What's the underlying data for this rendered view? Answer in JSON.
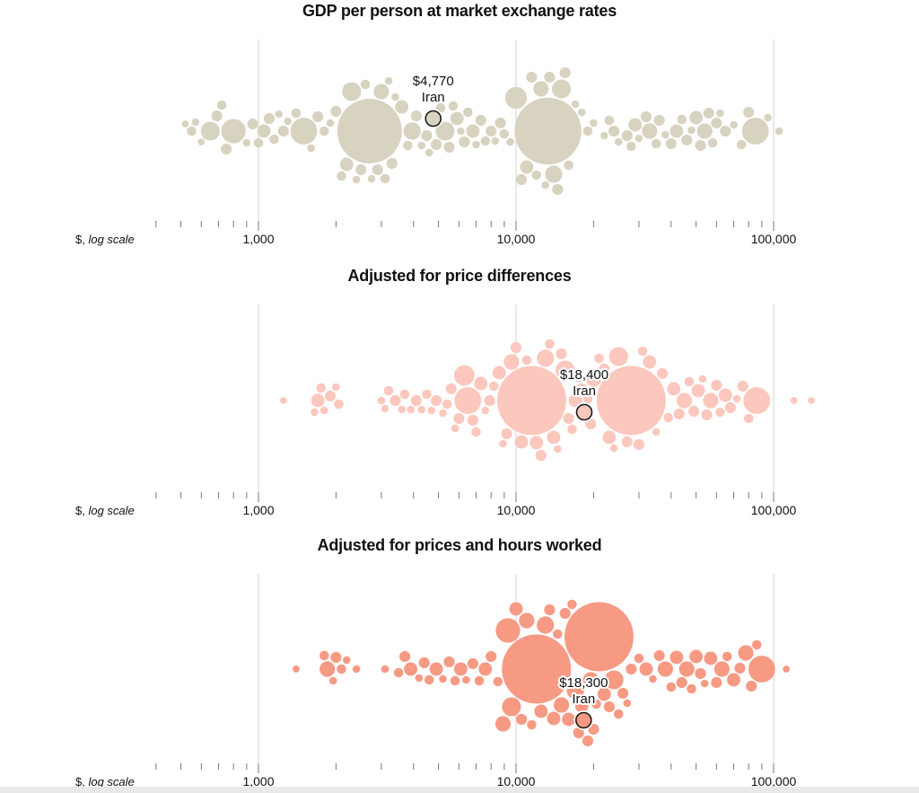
{
  "colors": {
    "panel_0": "#d8d3c0",
    "panel_1": "#fcc7bd",
    "panel_2": "#f79a84",
    "highlight_stroke": "#1a1a1a",
    "gridline": "#d6d6d6",
    "tick": "#777777"
  },
  "axis": {
    "scale": "log",
    "min": 400,
    "max": 110000,
    "major_ticks": [
      1000,
      10000,
      100000
    ],
    "tick_labels": [
      "1,000",
      "10,000",
      "100,000"
    ],
    "unit_label_prefix": "$, ",
    "unit_label_italic": "log scale"
  },
  "chart_data": [
    {
      "type": "scatter",
      "subtype": "beeswarm",
      "title": "GDP per person at market exchange rates",
      "highlight": {
        "country": "Iran",
        "value": 4770,
        "value_label": "$4,770"
      },
      "points": [
        {
          "x": 520,
          "s": 0.8
        },
        {
          "x": 550,
          "s": 1.5
        },
        {
          "x": 570,
          "s": 1
        },
        {
          "x": 600,
          "s": 0.8
        },
        {
          "x": 650,
          "s": 6
        },
        {
          "x": 690,
          "s": 2
        },
        {
          "x": 720,
          "s": 1.5
        },
        {
          "x": 750,
          "s": 2
        },
        {
          "x": 800,
          "s": 10
        },
        {
          "x": 900,
          "s": 1
        },
        {
          "x": 950,
          "s": 2
        },
        {
          "x": 1000,
          "s": 1.5
        },
        {
          "x": 1050,
          "s": 3
        },
        {
          "x": 1100,
          "s": 2
        },
        {
          "x": 1150,
          "s": 1.5
        },
        {
          "x": 1200,
          "s": 1
        },
        {
          "x": 1250,
          "s": 2
        },
        {
          "x": 1300,
          "s": 1
        },
        {
          "x": 1400,
          "s": 1.5
        },
        {
          "x": 1500,
          "s": 12
        },
        {
          "x": 1600,
          "s": 1
        },
        {
          "x": 1700,
          "s": 2
        },
        {
          "x": 1800,
          "s": 1.5
        },
        {
          "x": 1900,
          "s": 1
        },
        {
          "x": 2000,
          "s": 2
        },
        {
          "x": 2100,
          "s": 1.5
        },
        {
          "x": 2200,
          "s": 3
        },
        {
          "x": 2300,
          "s": 6
        },
        {
          "x": 2400,
          "s": 1
        },
        {
          "x": 2500,
          "s": 2
        },
        {
          "x": 2600,
          "s": 1.5
        },
        {
          "x": 2700,
          "s": 70
        },
        {
          "x": 2750,
          "s": 1
        },
        {
          "x": 2900,
          "s": 2
        },
        {
          "x": 3000,
          "s": 4
        },
        {
          "x": 3100,
          "s": 1.5
        },
        {
          "x": 3200,
          "s": 1
        },
        {
          "x": 3300,
          "s": 2
        },
        {
          "x": 3400,
          "s": 1
        },
        {
          "x": 3600,
          "s": 3
        },
        {
          "x": 3800,
          "s": 1.5
        },
        {
          "x": 3950,
          "s": 5
        },
        {
          "x": 4100,
          "s": 2
        },
        {
          "x": 4300,
          "s": 1
        },
        {
          "x": 4500,
          "s": 2
        },
        {
          "x": 4600,
          "s": 1
        },
        {
          "x": 4770,
          "s": 3
        },
        {
          "x": 4900,
          "s": 2
        },
        {
          "x": 5100,
          "s": 1.5
        },
        {
          "x": 5300,
          "s": 6
        },
        {
          "x": 5500,
          "s": 2
        },
        {
          "x": 5700,
          "s": 1.5
        },
        {
          "x": 5900,
          "s": 3
        },
        {
          "x": 6100,
          "s": 1
        },
        {
          "x": 6300,
          "s": 2
        },
        {
          "x": 6500,
          "s": 1.5
        },
        {
          "x": 6800,
          "s": 3
        },
        {
          "x": 7000,
          "s": 1
        },
        {
          "x": 7300,
          "s": 2
        },
        {
          "x": 7600,
          "s": 1.5
        },
        {
          "x": 8000,
          "s": 2
        },
        {
          "x": 8300,
          "s": 1
        },
        {
          "x": 8700,
          "s": 2
        },
        {
          "x": 9000,
          "s": 1.5
        },
        {
          "x": 9500,
          "s": 1
        },
        {
          "x": 10000,
          "s": 8
        },
        {
          "x": 10500,
          "s": 2
        },
        {
          "x": 11000,
          "s": 3
        },
        {
          "x": 11500,
          "s": 2
        },
        {
          "x": 12000,
          "s": 1.5
        },
        {
          "x": 12500,
          "s": 4
        },
        {
          "x": 13000,
          "s": 1
        },
        {
          "x": 13300,
          "s": 75
        },
        {
          "x": 13500,
          "s": 2
        },
        {
          "x": 14000,
          "s": 5
        },
        {
          "x": 14500,
          "s": 2
        },
        {
          "x": 15000,
          "s": 6
        },
        {
          "x": 15500,
          "s": 2
        },
        {
          "x": 16000,
          "s": 1.5
        },
        {
          "x": 17000,
          "s": 1
        },
        {
          "x": 18000,
          "s": 1
        },
        {
          "x": 19000,
          "s": 1.5
        },
        {
          "x": 20000,
          "s": 1
        },
        {
          "x": 22000,
          "s": 1
        },
        {
          "x": 23000,
          "s": 1.5
        },
        {
          "x": 24000,
          "s": 2
        },
        {
          "x": 25000,
          "s": 1
        },
        {
          "x": 27000,
          "s": 2
        },
        {
          "x": 28000,
          "s": 1.5
        },
        {
          "x": 29000,
          "s": 3
        },
        {
          "x": 30000,
          "s": 1
        },
        {
          "x": 32000,
          "s": 2
        },
        {
          "x": 33000,
          "s": 4
        },
        {
          "x": 35000,
          "s": 1.5
        },
        {
          "x": 36000,
          "s": 2
        },
        {
          "x": 38000,
          "s": 1
        },
        {
          "x": 40000,
          "s": 2
        },
        {
          "x": 42000,
          "s": 3
        },
        {
          "x": 44000,
          "s": 1.5
        },
        {
          "x": 46000,
          "s": 2
        },
        {
          "x": 48000,
          "s": 1
        },
        {
          "x": 50000,
          "s": 3
        },
        {
          "x": 52000,
          "s": 2
        },
        {
          "x": 54000,
          "s": 4
        },
        {
          "x": 56000,
          "s": 2
        },
        {
          "x": 58000,
          "s": 1.5
        },
        {
          "x": 60000,
          "s": 2
        },
        {
          "x": 62000,
          "s": 1
        },
        {
          "x": 65000,
          "s": 2
        },
        {
          "x": 70000,
          "s": 1
        },
        {
          "x": 75000,
          "s": 1.5
        },
        {
          "x": 80000,
          "s": 2
        },
        {
          "x": 85000,
          "s": 12
        },
        {
          "x": 95000,
          "s": 1
        },
        {
          "x": 105000,
          "s": 1
        }
      ]
    },
    {
      "type": "scatter",
      "subtype": "beeswarm",
      "title": "Adjusted for price differences",
      "highlight": {
        "country": "Iran",
        "value": 18400,
        "value_label": "$18,400"
      },
      "points": [
        {
          "x": 1250,
          "s": 0.8
        },
        {
          "x": 1650,
          "s": 1
        },
        {
          "x": 1700,
          "s": 3
        },
        {
          "x": 1750,
          "s": 1.5
        },
        {
          "x": 1800,
          "s": 1
        },
        {
          "x": 1900,
          "s": 2
        },
        {
          "x": 2000,
          "s": 1
        },
        {
          "x": 2050,
          "s": 1.5
        },
        {
          "x": 3000,
          "s": 1
        },
        {
          "x": 3100,
          "s": 1
        },
        {
          "x": 3200,
          "s": 1.5
        },
        {
          "x": 3400,
          "s": 2
        },
        {
          "x": 3600,
          "s": 1
        },
        {
          "x": 3700,
          "s": 1.5
        },
        {
          "x": 3900,
          "s": 1
        },
        {
          "x": 4100,
          "s": 2
        },
        {
          "x": 4300,
          "s": 1
        },
        {
          "x": 4500,
          "s": 1.5
        },
        {
          "x": 4700,
          "s": 1
        },
        {
          "x": 4900,
          "s": 2
        },
        {
          "x": 5200,
          "s": 1
        },
        {
          "x": 5400,
          "s": 1.5
        },
        {
          "x": 5600,
          "s": 2
        },
        {
          "x": 5800,
          "s": 1
        },
        {
          "x": 6000,
          "s": 2
        },
        {
          "x": 6300,
          "s": 7
        },
        {
          "x": 6500,
          "s": 12
        },
        {
          "x": 6800,
          "s": 2
        },
        {
          "x": 7000,
          "s": 1.5
        },
        {
          "x": 7300,
          "s": 3
        },
        {
          "x": 7600,
          "s": 1
        },
        {
          "x": 7900,
          "s": 2
        },
        {
          "x": 8200,
          "s": 1.5
        },
        {
          "x": 8600,
          "s": 3
        },
        {
          "x": 8900,
          "s": 1
        },
        {
          "x": 9200,
          "s": 2
        },
        {
          "x": 9600,
          "s": 4
        },
        {
          "x": 10000,
          "s": 2
        },
        {
          "x": 10500,
          "s": 3
        },
        {
          "x": 11000,
          "s": 1.5
        },
        {
          "x": 11500,
          "s": 80
        },
        {
          "x": 12000,
          "s": 3
        },
        {
          "x": 12500,
          "s": 2
        },
        {
          "x": 13000,
          "s": 5
        },
        {
          "x": 13500,
          "s": 1.5
        },
        {
          "x": 14000,
          "s": 3
        },
        {
          "x": 14500,
          "s": 1
        },
        {
          "x": 15000,
          "s": 2
        },
        {
          "x": 15500,
          "s": 6
        },
        {
          "x": 16000,
          "s": 2
        },
        {
          "x": 16500,
          "s": 1.5
        },
        {
          "x": 17000,
          "s": 3
        },
        {
          "x": 17500,
          "s": 1
        },
        {
          "x": 18000,
          "s": 2
        },
        {
          "x": 18400,
          "s": 3
        },
        {
          "x": 19000,
          "s": 1.5
        },
        {
          "x": 19500,
          "s": 2
        },
        {
          "x": 20000,
          "s": 4
        },
        {
          "x": 21000,
          "s": 1.5
        },
        {
          "x": 22000,
          "s": 2
        },
        {
          "x": 23000,
          "s": 3
        },
        {
          "x": 24000,
          "s": 1
        },
        {
          "x": 25000,
          "s": 6
        },
        {
          "x": 27000,
          "s": 2
        },
        {
          "x": 28000,
          "s": 80
        },
        {
          "x": 30000,
          "s": 2
        },
        {
          "x": 31000,
          "s": 1.5
        },
        {
          "x": 33000,
          "s": 3
        },
        {
          "x": 35000,
          "s": 1
        },
        {
          "x": 37000,
          "s": 2
        },
        {
          "x": 39000,
          "s": 1.5
        },
        {
          "x": 41000,
          "s": 3
        },
        {
          "x": 43000,
          "s": 2
        },
        {
          "x": 45000,
          "s": 4
        },
        {
          "x": 47000,
          "s": 1.5
        },
        {
          "x": 49000,
          "s": 2
        },
        {
          "x": 51000,
          "s": 3
        },
        {
          "x": 53000,
          "s": 1
        },
        {
          "x": 55000,
          "s": 2
        },
        {
          "x": 57000,
          "s": 4
        },
        {
          "x": 60000,
          "s": 2
        },
        {
          "x": 62000,
          "s": 1.5
        },
        {
          "x": 65000,
          "s": 3
        },
        {
          "x": 68000,
          "s": 2
        },
        {
          "x": 72000,
          "s": 1
        },
        {
          "x": 76000,
          "s": 2
        },
        {
          "x": 80000,
          "s": 1.5
        },
        {
          "x": 86000,
          "s": 12
        },
        {
          "x": 120000,
          "s": 0.8
        },
        {
          "x": 140000,
          "s": 0.8
        }
      ]
    },
    {
      "type": "scatter",
      "subtype": "beeswarm",
      "title": "Adjusted for prices and hours worked",
      "highlight": {
        "country": "Iran",
        "value": 18300,
        "value_label": "$18,300"
      },
      "points": [
        {
          "x": 1400,
          "s": 0.8
        },
        {
          "x": 1800,
          "s": 1.5
        },
        {
          "x": 1850,
          "s": 4
        },
        {
          "x": 1950,
          "s": 1
        },
        {
          "x": 2000,
          "s": 2
        },
        {
          "x": 2100,
          "s": 1.5
        },
        {
          "x": 2200,
          "s": 1
        },
        {
          "x": 2400,
          "s": 1
        },
        {
          "x": 3100,
          "s": 1
        },
        {
          "x": 3500,
          "s": 1.5
        },
        {
          "x": 3700,
          "s": 2
        },
        {
          "x": 3900,
          "s": 3
        },
        {
          "x": 4200,
          "s": 1
        },
        {
          "x": 4400,
          "s": 2
        },
        {
          "x": 4600,
          "s": 1.5
        },
        {
          "x": 4900,
          "s": 3
        },
        {
          "x": 5200,
          "s": 1
        },
        {
          "x": 5500,
          "s": 2
        },
        {
          "x": 5800,
          "s": 1.5
        },
        {
          "x": 6100,
          "s": 3
        },
        {
          "x": 6400,
          "s": 1
        },
        {
          "x": 6800,
          "s": 2
        },
        {
          "x": 7200,
          "s": 1.5
        },
        {
          "x": 7600,
          "s": 3
        },
        {
          "x": 8000,
          "s": 2
        },
        {
          "x": 8500,
          "s": 1.5
        },
        {
          "x": 8900,
          "s": 4
        },
        {
          "x": 9300,
          "s": 10
        },
        {
          "x": 9600,
          "s": 6
        },
        {
          "x": 10000,
          "s": 3
        },
        {
          "x": 10500,
          "s": 2
        },
        {
          "x": 11000,
          "s": 4
        },
        {
          "x": 11500,
          "s": 1.5
        },
        {
          "x": 12000,
          "s": 80
        },
        {
          "x": 12500,
          "s": 3
        },
        {
          "x": 13000,
          "s": 5
        },
        {
          "x": 13500,
          "s": 2
        },
        {
          "x": 14000,
          "s": 3
        },
        {
          "x": 14500,
          "s": 1.5
        },
        {
          "x": 15000,
          "s": 4
        },
        {
          "x": 15500,
          "s": 2
        },
        {
          "x": 16000,
          "s": 3
        },
        {
          "x": 16500,
          "s": 1.5
        },
        {
          "x": 17000,
          "s": 5
        },
        {
          "x": 17500,
          "s": 2
        },
        {
          "x": 18000,
          "s": 3
        },
        {
          "x": 18300,
          "s": 3
        },
        {
          "x": 19000,
          "s": 2
        },
        {
          "x": 19500,
          "s": 4
        },
        {
          "x": 20000,
          "s": 2
        },
        {
          "x": 20500,
          "s": 1.5
        },
        {
          "x": 21000,
          "s": 80
        },
        {
          "x": 22000,
          "s": 3
        },
        {
          "x": 23000,
          "s": 2
        },
        {
          "x": 24000,
          "s": 6
        },
        {
          "x": 25000,
          "s": 1.5
        },
        {
          "x": 26000,
          "s": 2
        },
        {
          "x": 27000,
          "s": 1
        },
        {
          "x": 28000,
          "s": 2
        },
        {
          "x": 30000,
          "s": 1.5
        },
        {
          "x": 32000,
          "s": 3
        },
        {
          "x": 34000,
          "s": 1
        },
        {
          "x": 36000,
          "s": 2
        },
        {
          "x": 38000,
          "s": 4
        },
        {
          "x": 40000,
          "s": 1.5
        },
        {
          "x": 42000,
          "s": 3
        },
        {
          "x": 44000,
          "s": 2
        },
        {
          "x": 46000,
          "s": 4
        },
        {
          "x": 48000,
          "s": 1.5
        },
        {
          "x": 50000,
          "s": 3
        },
        {
          "x": 52000,
          "s": 2
        },
        {
          "x": 54000,
          "s": 1
        },
        {
          "x": 57000,
          "s": 3
        },
        {
          "x": 60000,
          "s": 2
        },
        {
          "x": 63000,
          "s": 4
        },
        {
          "x": 66000,
          "s": 1.5
        },
        {
          "x": 70000,
          "s": 3
        },
        {
          "x": 74000,
          "s": 2
        },
        {
          "x": 78000,
          "s": 4
        },
        {
          "x": 82000,
          "s": 2
        },
        {
          "x": 86000,
          "s": 1.5
        },
        {
          "x": 90000,
          "s": 12
        },
        {
          "x": 112000,
          "s": 0.8
        }
      ]
    }
  ]
}
